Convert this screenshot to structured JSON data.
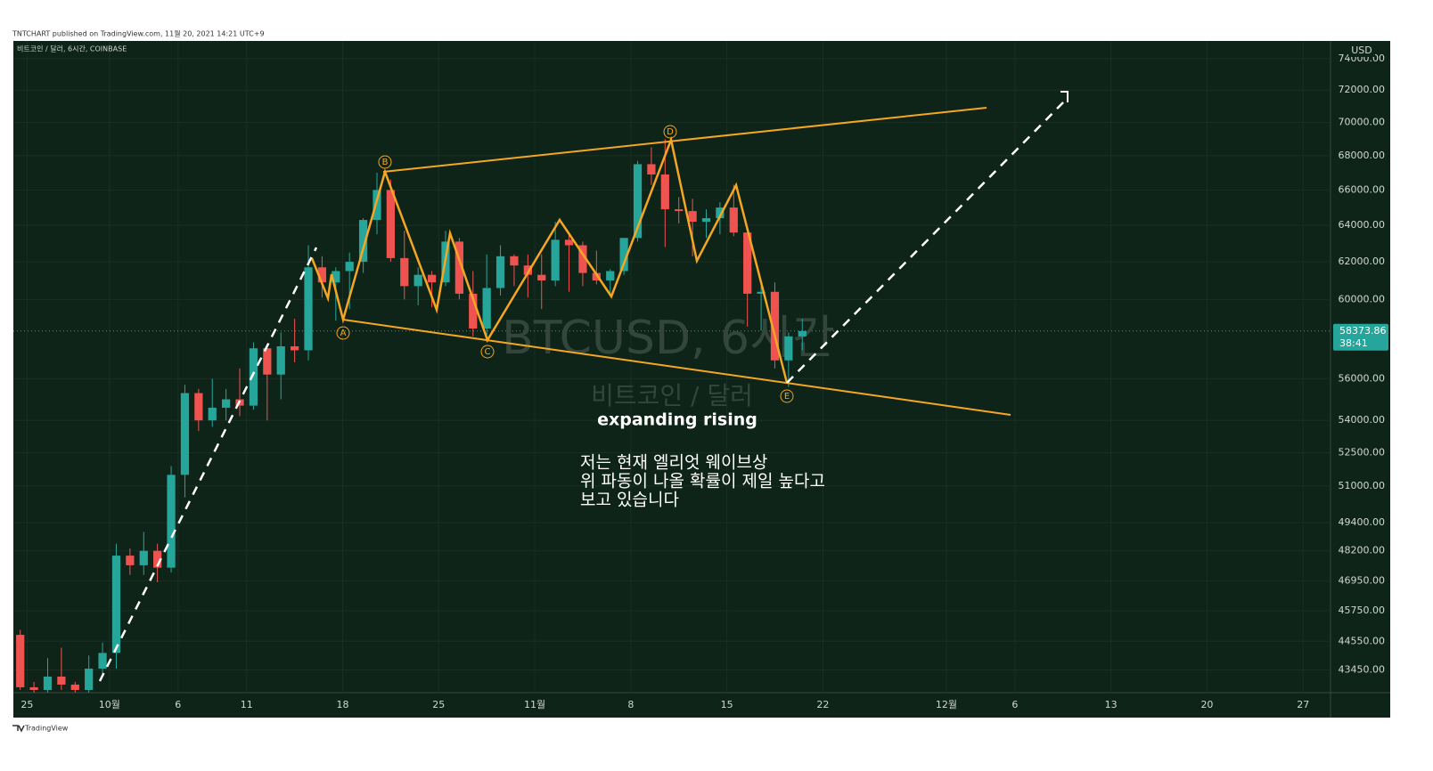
{
  "header": {
    "published": "TNTCHART published on TradingView.com, 11월 20, 2021 14:21 UTC+9"
  },
  "footer": {
    "brand": "TradingView"
  },
  "chart_data": {
    "type": "candlestick",
    "title": "비트코인 / 달러, 6시간, COINBASE",
    "watermark": "BTCUSD, 6시간",
    "watermark_sub": "비트코인 / 달러",
    "annotations": [
      "expanding rising",
      "저는 현재 엘리엇 웨이브상",
      "위 파동이 나올 확률이 제일 높다고",
      "보고 있습니다"
    ],
    "wave_labels": [
      "A",
      "B",
      "C",
      "D",
      "E"
    ],
    "currency": "USD",
    "last_price": 58373.86,
    "countdown": "38:41",
    "log_scale": true,
    "up_color": "#26a69a",
    "down_color": "#ef5350",
    "x": [
      "2021-09-24",
      "2021-09-25",
      "2021-09-26",
      "2021-09-27",
      "2021-09-28",
      "2021-09-29",
      "2021-09-30",
      "2021-10-01",
      "2021-10-02",
      "2021-10-03",
      "2021-10-04",
      "2021-10-05",
      "2021-10-06",
      "2021-10-07",
      "2021-10-08",
      "2021-10-09",
      "2021-10-10",
      "2021-10-11",
      "2021-10-12",
      "2021-10-13",
      "2021-10-14",
      "2021-10-15",
      "2021-10-16",
      "2021-10-17",
      "2021-10-18",
      "2021-10-19",
      "2021-10-20",
      "2021-10-21",
      "2021-10-22",
      "2021-10-23",
      "2021-10-24",
      "2021-10-25",
      "2021-10-26",
      "2021-10-27",
      "2021-10-28",
      "2021-10-29",
      "2021-10-30",
      "2021-10-31",
      "2021-11-01",
      "2021-11-02",
      "2021-11-03",
      "2021-11-04",
      "2021-11-05",
      "2021-11-06",
      "2021-11-07",
      "2021-11-08",
      "2021-11-09",
      "2021-11-10",
      "2021-11-11",
      "2021-11-12",
      "2021-11-13",
      "2021-11-14",
      "2021-11-15",
      "2021-11-16",
      "2021-11-17",
      "2021-11-18",
      "2021-11-19",
      "2021-11-20"
    ],
    "open": [
      44800,
      42800,
      42700,
      43200,
      42900,
      42700,
      43500,
      44100,
      48000,
      47600,
      48200,
      47500,
      51500,
      55300,
      54000,
      54600,
      55000,
      54700,
      57500,
      56200,
      57600,
      57400,
      61700,
      60900,
      61500,
      62000,
      64300,
      66000,
      62200,
      60700,
      61300,
      60900,
      63100,
      60300,
      58500,
      60600,
      62300,
      61800,
      61300,
      61000,
      63200,
      62900,
      61400,
      61000,
      61500,
      63300,
      67500,
      66900,
      64900,
      64800,
      64200,
      64400,
      65000,
      63600,
      60300,
      60400,
      56900,
      58100
    ],
    "high": [
      45000,
      43000,
      43900,
      44300,
      43000,
      44000,
      44500,
      48500,
      48300,
      49000,
      48500,
      51900,
      55700,
      55500,
      56000,
      55500,
      56500,
      57800,
      57600,
      58300,
      59000,
      62900,
      62300,
      61700,
      62500,
      64400,
      67000,
      66600,
      63700,
      61700,
      61500,
      63700,
      63300,
      61500,
      62400,
      62900,
      62400,
      62400,
      62400,
      64200,
      63500,
      63100,
      62600,
      61600,
      63300,
      67700,
      68500,
      69000,
      65600,
      65500,
      64900,
      65300,
      66300,
      63600,
      60700,
      60900,
      58300,
      59000
    ],
    "low": [
      42700,
      42600,
      42600,
      42700,
      42600,
      42600,
      43200,
      43500,
      47200,
      47200,
      46900,
      47300,
      50500,
      53500,
      53700,
      54000,
      54200,
      54500,
      54000,
      55000,
      56800,
      56900,
      60100,
      58900,
      59500,
      61400,
      63500,
      62000,
      60000,
      59700,
      59600,
      60700,
      60000,
      58100,
      57800,
      60200,
      60700,
      60100,
      59500,
      60700,
      60400,
      60700,
      60800,
      60200,
      61300,
      63100,
      66300,
      62800,
      64100,
      62300,
      63300,
      63500,
      63400,
      58600,
      58400,
      56500,
      55600,
      57400
    ],
    "close": [
      42800,
      42700,
      43200,
      42900,
      42700,
      43500,
      44100,
      48000,
      47600,
      48200,
      47500,
      51500,
      55300,
      54000,
      54600,
      55000,
      54700,
      57500,
      56200,
      57600,
      57400,
      61700,
      60900,
      61500,
      62000,
      64300,
      66000,
      62200,
      60700,
      61300,
      60900,
      63100,
      60300,
      58500,
      60600,
      62300,
      61800,
      61300,
      61000,
      63200,
      62900,
      61400,
      61000,
      61500,
      63300,
      67500,
      66900,
      64900,
      64800,
      64200,
      64400,
      65000,
      63600,
      60300,
      60400,
      56900,
      58100,
      58373.86
    ],
    "xlim": [
      "2021-09-24",
      "2021-12-29"
    ],
    "xticks": [
      {
        "value": "2021-09-25",
        "label": "25"
      },
      {
        "value": "2021-10-01",
        "label": "10월"
      },
      {
        "value": "2021-10-06",
        "label": "6"
      },
      {
        "value": "2021-10-11",
        "label": "11"
      },
      {
        "value": "2021-10-18",
        "label": "18"
      },
      {
        "value": "2021-10-25",
        "label": "25"
      },
      {
        "value": "2021-11-01",
        "label": "11월"
      },
      {
        "value": "2021-11-08",
        "label": "8"
      },
      {
        "value": "2021-11-15",
        "label": "15"
      },
      {
        "value": "2021-11-22",
        "label": "22"
      },
      {
        "value": "2021-12-01",
        "label": "12월"
      },
      {
        "value": "2021-12-06",
        "label": "6"
      },
      {
        "value": "2021-12-13",
        "label": "13"
      },
      {
        "value": "2021-12-20",
        "label": "20"
      },
      {
        "value": "2021-12-27",
        "label": "27"
      }
    ],
    "ylim": [
      42600,
      75150
    ],
    "yticks": [
      {
        "value": 43450,
        "label": "43450.00"
      },
      {
        "value": 44550,
        "label": "44550.00"
      },
      {
        "value": 45750,
        "label": "45750.00"
      },
      {
        "value": 46950,
        "label": "46950.00"
      },
      {
        "value": 48200,
        "label": "48200.00"
      },
      {
        "value": 49400,
        "label": "49400.00"
      },
      {
        "value": 51000,
        "label": "51000.00"
      },
      {
        "value": 52500,
        "label": "52500.00"
      },
      {
        "value": 54000,
        "label": "54000.00"
      },
      {
        "value": 56000,
        "label": "56000.00"
      },
      {
        "value": 60000,
        "label": "60000.00"
      },
      {
        "value": 62000,
        "label": "62000.00"
      },
      {
        "value": 64000,
        "label": "64000.00"
      },
      {
        "value": 66000,
        "label": "66000.00"
      },
      {
        "value": 68000,
        "label": "68000.00"
      },
      {
        "value": 70000,
        "label": "70000.00"
      },
      {
        "value": 72000,
        "label": "72000.00"
      },
      {
        "value": 74000,
        "label": "74000.00"
      }
    ]
  }
}
